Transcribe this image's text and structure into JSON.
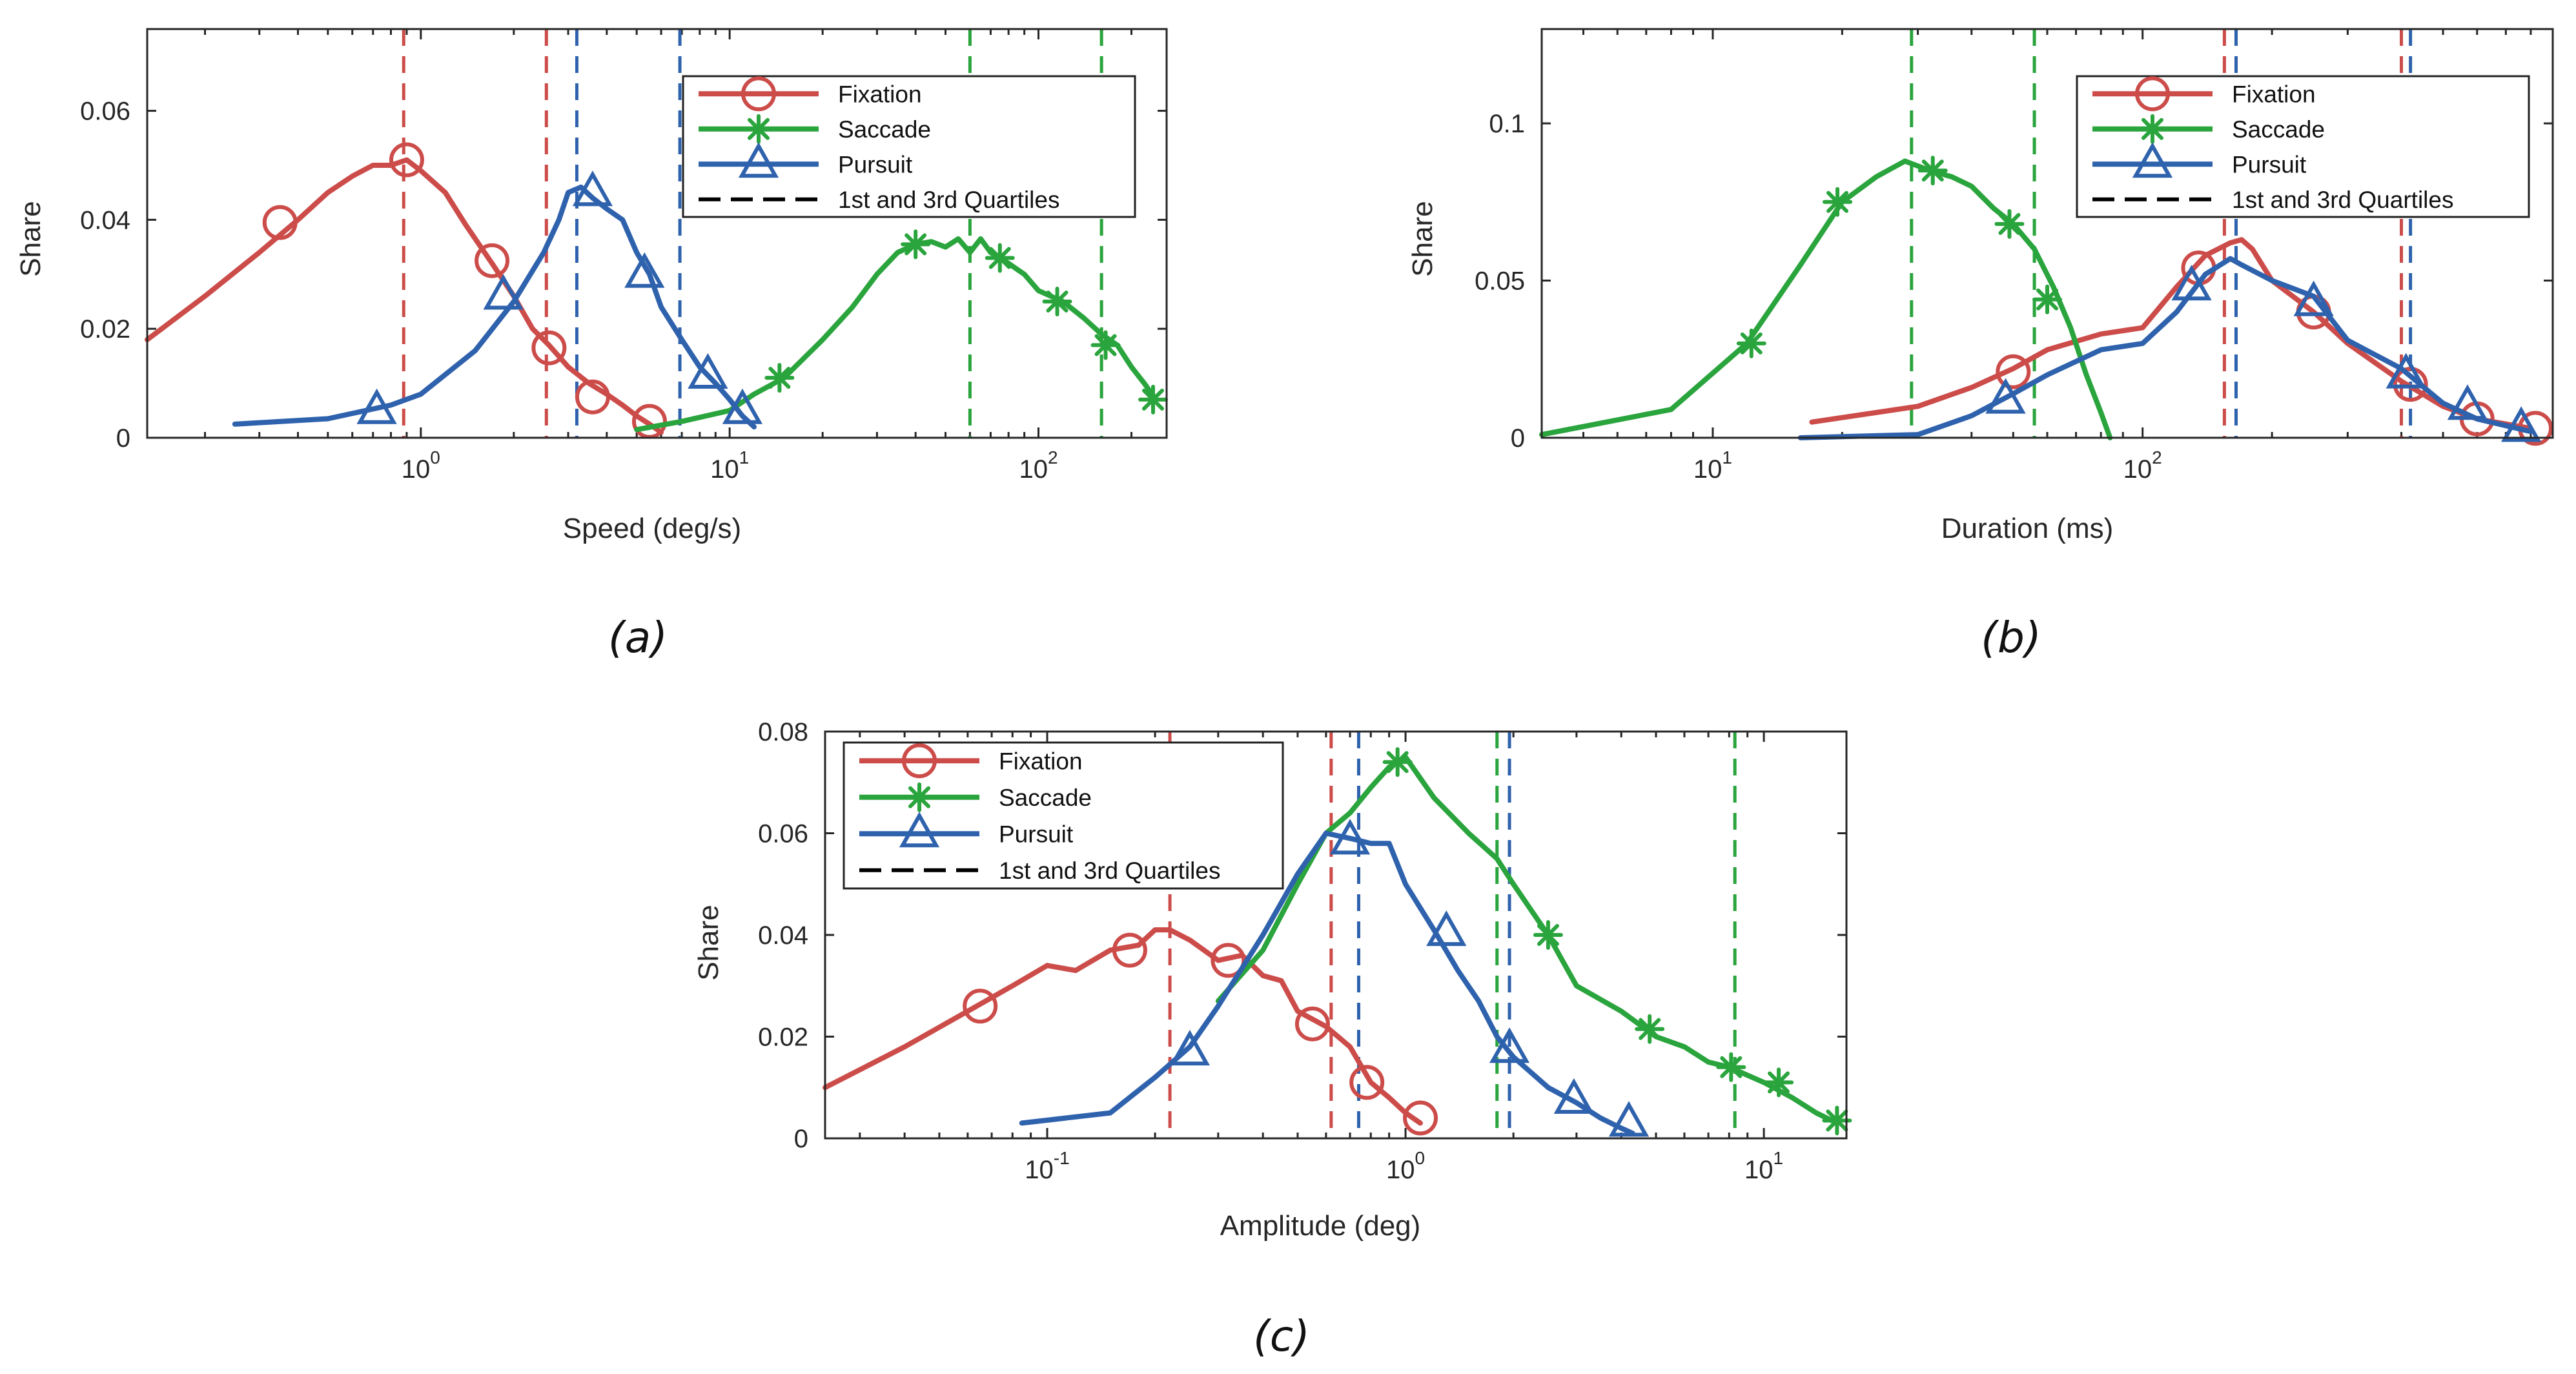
{
  "colors": {
    "fixation": "#cc4c4a",
    "saccade": "#2aa43c",
    "pursuit": "#2f62ad",
    "quartile_legend": "#000000"
  },
  "chart_data": [
    {
      "type": "line",
      "caption": "(a)",
      "xscale": "log",
      "xlabel": "Speed (deg/s)",
      "ylabel": "Share",
      "xlim": [
        0.13,
        260
      ],
      "ylim": [
        0,
        0.075
      ],
      "yticks": [
        0,
        0.02,
        0.04,
        0.06
      ],
      "ytick_labels": [
        "0",
        "0.02",
        "0.04",
        "0.06"
      ],
      "xticks": [
        1,
        10,
        100
      ],
      "xtick_labels": [
        {
          "base": "10",
          "exp": "0"
        },
        {
          "base": "10",
          "exp": "1"
        },
        {
          "base": "10",
          "exp": "2"
        }
      ],
      "legend": {
        "position": "top-right",
        "entries": [
          "Fixation",
          "Saccade",
          "Pursuit",
          "1st and 3rd Quartiles"
        ]
      },
      "series": [
        {
          "name": "Fixation",
          "color_key": "fixation",
          "marker": "circle",
          "x": [
            0.13,
            0.2,
            0.3,
            0.4,
            0.5,
            0.6,
            0.7,
            0.8,
            0.9,
            1.0,
            1.2,
            1.4,
            1.7,
            2.0,
            2.3,
            2.6,
            3.0,
            3.5,
            4.0,
            4.5,
            5.0,
            5.5,
            6.0
          ],
          "y": [
            0.018,
            0.026,
            0.034,
            0.04,
            0.045,
            0.048,
            0.05,
            0.05,
            0.051,
            0.049,
            0.045,
            0.039,
            0.032,
            0.026,
            0.02,
            0.017,
            0.013,
            0.01,
            0.008,
            0.006,
            0.004,
            0.0025,
            0.001
          ],
          "markers_x": [
            0.35,
            0.9,
            1.7,
            2.6,
            3.6,
            5.5
          ],
          "markers_y": [
            0.0395,
            0.051,
            0.0325,
            0.0165,
            0.0075,
            0.003
          ]
        },
        {
          "name": "Saccade",
          "color_key": "saccade",
          "marker": "asterisk",
          "x": [
            5,
            7,
            10,
            12,
            15,
            20,
            25,
            30,
            35,
            40,
            45,
            50,
            55,
            60,
            65,
            70,
            80,
            90,
            100,
            120,
            140,
            160,
            180,
            200,
            220,
            240
          ],
          "y": [
            0.0015,
            0.003,
            0.005,
            0.008,
            0.011,
            0.018,
            0.024,
            0.03,
            0.034,
            0.0355,
            0.036,
            0.035,
            0.0365,
            0.034,
            0.0365,
            0.034,
            0.032,
            0.03,
            0.027,
            0.025,
            0.022,
            0.019,
            0.017,
            0.013,
            0.01,
            0.007
          ],
          "markers_x": [
            14.5,
            40,
            75,
            115,
            165,
            235
          ],
          "markers_y": [
            0.011,
            0.0355,
            0.033,
            0.025,
            0.017,
            0.007
          ]
        },
        {
          "name": "Pursuit",
          "color_key": "pursuit",
          "marker": "triangle",
          "x": [
            0.25,
            0.5,
            0.8,
            1.0,
            1.5,
            2.0,
            2.5,
            2.8,
            3.0,
            3.3,
            3.6,
            4.0,
            4.5,
            5.0,
            5.5,
            6.0,
            7.0,
            8.0,
            9.0,
            10,
            11,
            12
          ],
          "y": [
            0.0025,
            0.0035,
            0.006,
            0.008,
            0.016,
            0.025,
            0.034,
            0.04,
            0.045,
            0.046,
            0.044,
            0.042,
            0.04,
            0.034,
            0.03,
            0.024,
            0.018,
            0.013,
            0.01,
            0.007,
            0.004,
            0.002
          ],
          "markers_x": [
            0.72,
            1.85,
            3.6,
            5.3,
            8.5,
            11
          ],
          "markers_y": [
            0.005,
            0.026,
            0.045,
            0.03,
            0.0115,
            0.005
          ]
        }
      ],
      "quartiles": [
        {
          "color_key": "fixation",
          "x": [
            0.88,
            2.55
          ]
        },
        {
          "color_key": "pursuit",
          "x": [
            3.2,
            6.9
          ]
        },
        {
          "color_key": "saccade",
          "x": [
            60,
            160
          ]
        }
      ]
    },
    {
      "type": "line",
      "caption": "(b)",
      "xscale": "log",
      "xlabel": "Duration (ms)",
      "ylabel": "Share",
      "xlim": [
        4,
        900
      ],
      "ylim": [
        0,
        0.13
      ],
      "yticks": [
        0,
        0.05,
        0.1
      ],
      "ytick_labels": [
        "0",
        "0.05",
        "0.1"
      ],
      "xticks": [
        10,
        100
      ],
      "xtick_labels": [
        {
          "base": "10",
          "exp": "1"
        },
        {
          "base": "10",
          "exp": "2"
        }
      ],
      "legend": {
        "position": "top-right",
        "entries": [
          "Fixation",
          "Saccade",
          "Pursuit",
          "1st and 3rd Quartiles"
        ]
      },
      "series": [
        {
          "name": "Fixation",
          "color_key": "fixation",
          "marker": "circle",
          "x": [
            17,
            30,
            40,
            50,
            60,
            80,
            100,
            120,
            140,
            160,
            170,
            180,
            200,
            250,
            300,
            400,
            500,
            600,
            800
          ],
          "y": [
            0.005,
            0.01,
            0.016,
            0.022,
            0.028,
            0.033,
            0.035,
            0.048,
            0.058,
            0.062,
            0.063,
            0.06,
            0.05,
            0.04,
            0.03,
            0.018,
            0.01,
            0.006,
            0.003
          ],
          "markers_x": [
            50,
            135,
            250,
            420,
            600,
            820
          ],
          "markers_y": [
            0.021,
            0.054,
            0.04,
            0.017,
            0.006,
            0.003
          ]
        },
        {
          "name": "Saccade",
          "color_key": "saccade",
          "marker": "asterisk",
          "x": [
            4,
            8,
            12,
            16,
            20,
            24,
            28,
            32,
            36,
            40,
            45,
            50,
            56,
            62,
            68,
            74,
            80,
            84
          ],
          "y": [
            0.001,
            0.009,
            0.03,
            0.055,
            0.075,
            0.083,
            0.088,
            0.085,
            0.083,
            0.08,
            0.073,
            0.068,
            0.06,
            0.048,
            0.035,
            0.02,
            0.008,
            0
          ],
          "markers_x": [
            12.3,
            19.5,
            32.5,
            49,
            60
          ],
          "markers_y": [
            0.03,
            0.075,
            0.085,
            0.068,
            0.044
          ]
        },
        {
          "name": "Pursuit",
          "color_key": "pursuit",
          "marker": "triangle",
          "x": [
            16,
            30,
            40,
            50,
            60,
            80,
            100,
            120,
            140,
            160,
            170,
            200,
            250,
            300,
            400,
            500,
            600,
            800
          ],
          "y": [
            0,
            0.001,
            0.007,
            0.014,
            0.02,
            0.028,
            0.03,
            0.04,
            0.052,
            0.057,
            0.055,
            0.05,
            0.045,
            0.031,
            0.022,
            0.011,
            0.006,
            0.002
          ],
          "markers_x": [
            48,
            130,
            250,
            410,
            570,
            760
          ],
          "markers_y": [
            0.012,
            0.048,
            0.043,
            0.02,
            0.01,
            0.003
          ]
        }
      ],
      "quartiles": [
        {
          "color_key": "saccade",
          "x": [
            29,
            56
          ]
        },
        {
          "color_key": "fixation",
          "x": [
            155,
            400
          ]
        },
        {
          "color_key": "pursuit",
          "x": [
            165,
            420
          ]
        }
      ]
    },
    {
      "type": "line",
      "caption": "(c)",
      "xscale": "log",
      "xlabel": "Amplitude (deg)",
      "ylabel": "Share",
      "xlim": [
        0.024,
        17
      ],
      "ylim": [
        0,
        0.08
      ],
      "yticks": [
        0,
        0.02,
        0.04,
        0.06,
        0.08
      ],
      "ytick_labels": [
        "0",
        "0.02",
        "0.04",
        "0.06",
        "0.08"
      ],
      "xticks": [
        0.1,
        1,
        10
      ],
      "xtick_labels": [
        {
          "base": "10",
          "exp": "-1"
        },
        {
          "base": "10",
          "exp": "0"
        },
        {
          "base": "10",
          "exp": "1"
        }
      ],
      "legend": {
        "position": "top-left",
        "entries": [
          "Fixation",
          "Saccade",
          "Pursuit",
          "1st and 3rd Quartiles"
        ]
      },
      "series": [
        {
          "name": "Fixation",
          "color_key": "fixation",
          "marker": "circle",
          "x": [
            0.024,
            0.04,
            0.06,
            0.08,
            0.1,
            0.12,
            0.15,
            0.18,
            0.2,
            0.22,
            0.25,
            0.3,
            0.35,
            0.4,
            0.45,
            0.5,
            0.6,
            0.7,
            0.8,
            0.9,
            1.0,
            1.1
          ],
          "y": [
            0.01,
            0.018,
            0.025,
            0.03,
            0.034,
            0.033,
            0.037,
            0.038,
            0.041,
            0.041,
            0.039,
            0.035,
            0.036,
            0.032,
            0.031,
            0.025,
            0.022,
            0.018,
            0.011,
            0.008,
            0.005,
            0.003
          ],
          "markers_x": [
            0.065,
            0.17,
            0.32,
            0.55,
            0.78,
            1.1
          ],
          "markers_y": [
            0.026,
            0.037,
            0.035,
            0.0225,
            0.011,
            0.004
          ]
        },
        {
          "name": "Saccade",
          "color_key": "saccade",
          "marker": "asterisk",
          "x": [
            0.3,
            0.4,
            0.5,
            0.6,
            0.7,
            0.8,
            0.9,
            1.0,
            1.2,
            1.5,
            1.8,
            2.0,
            2.5,
            3.0,
            4.0,
            5.0,
            6.0,
            7.0,
            8.0,
            10,
            12,
            14,
            16
          ],
          "y": [
            0.027,
            0.037,
            0.05,
            0.06,
            0.064,
            0.069,
            0.073,
            0.075,
            0.067,
            0.06,
            0.055,
            0.05,
            0.04,
            0.03,
            0.025,
            0.02,
            0.018,
            0.015,
            0.014,
            0.011,
            0.008,
            0.005,
            0.003
          ],
          "markers_x": [
            0.95,
            2.5,
            4.8,
            8.1,
            11,
            16
          ],
          "markers_y": [
            0.074,
            0.04,
            0.0215,
            0.014,
            0.011,
            0.0035
          ]
        },
        {
          "name": "Pursuit",
          "color_key": "pursuit",
          "marker": "triangle",
          "x": [
            0.085,
            0.15,
            0.2,
            0.25,
            0.3,
            0.4,
            0.5,
            0.6,
            0.7,
            0.8,
            0.9,
            1.0,
            1.2,
            1.4,
            1.6,
            1.8,
            2.0,
            2.5,
            3.0,
            3.5,
            4.0,
            4.3
          ],
          "y": [
            0.003,
            0.005,
            0.012,
            0.018,
            0.026,
            0.04,
            0.052,
            0.06,
            0.059,
            0.058,
            0.058,
            0.05,
            0.041,
            0.033,
            0.027,
            0.02,
            0.016,
            0.01,
            0.007,
            0.004,
            0.002,
            0.001
          ],
          "markers_x": [
            0.25,
            0.7,
            1.3,
            1.95,
            2.95,
            4.2
          ],
          "markers_y": [
            0.017,
            0.0585,
            0.0405,
            0.0175,
            0.0075,
            0.003
          ]
        }
      ],
      "quartiles": [
        {
          "color_key": "fixation",
          "x": [
            0.22,
            0.62
          ]
        },
        {
          "color_key": "pursuit",
          "x": [
            0.74,
            1.95
          ]
        },
        {
          "color_key": "saccade",
          "x": [
            1.8,
            8.3
          ]
        }
      ]
    }
  ]
}
